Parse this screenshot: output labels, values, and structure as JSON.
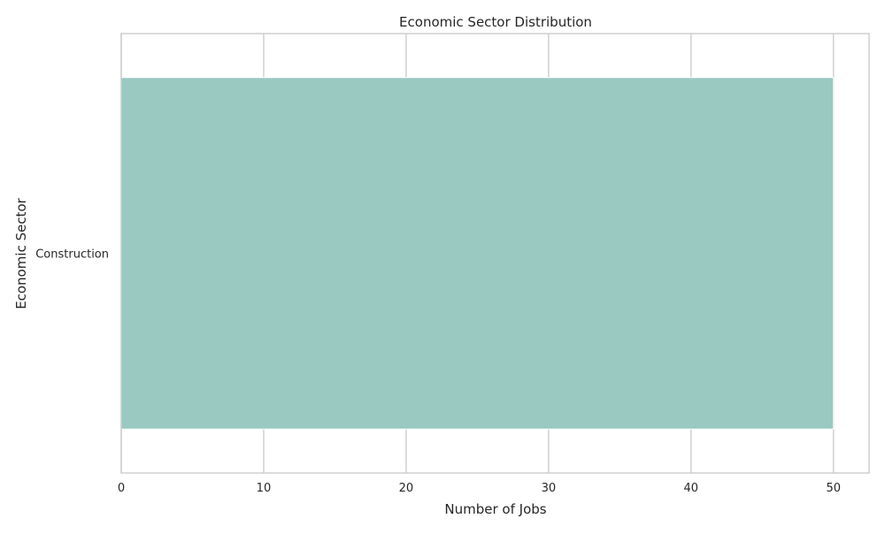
{
  "chart_data": {
    "type": "bar",
    "orientation": "horizontal",
    "title": "Economic Sector Distribution",
    "xlabel": "Number of Jobs",
    "ylabel": "Economic Sector",
    "categories": [
      "Construction"
    ],
    "values": [
      50
    ],
    "xlim": [
      0,
      52.5
    ],
    "xticks": [
      0,
      10,
      20,
      30,
      40,
      50
    ],
    "grid": true,
    "legend": "none",
    "bar_color": "#99c9c1",
    "grid_color": "#cccccc",
    "spine_color": "#cccccc"
  }
}
